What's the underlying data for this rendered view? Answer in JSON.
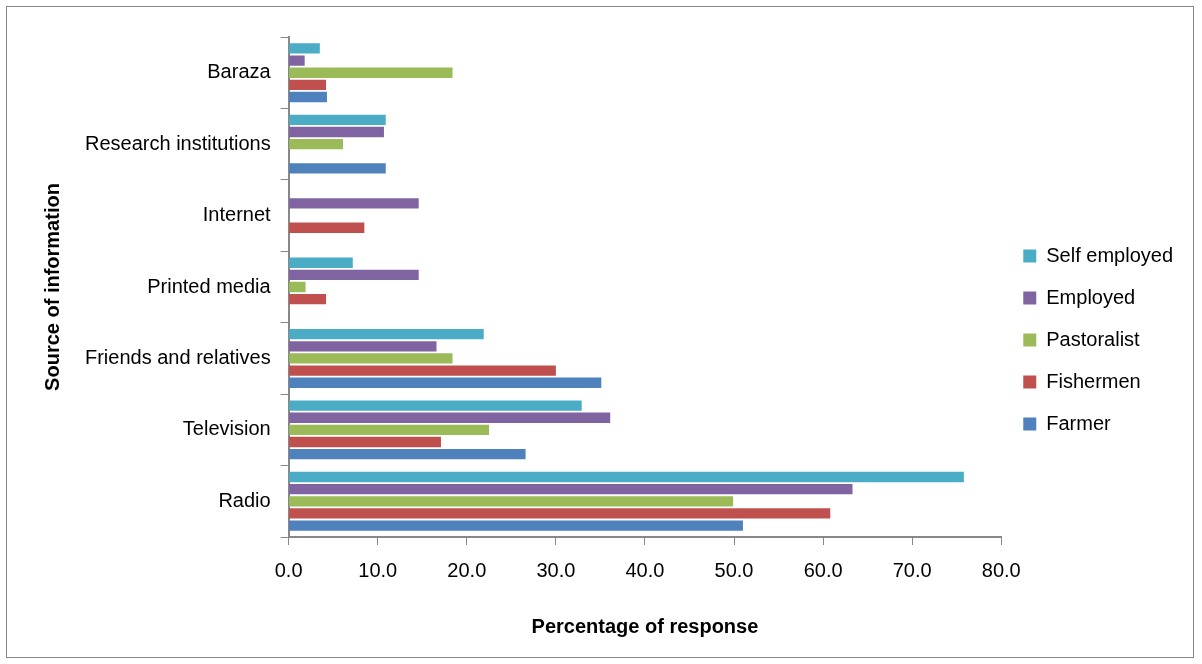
{
  "chart_data": {
    "type": "bar",
    "orientation": "horizontal",
    "xlabel": "Percentage of response",
    "ylabel": "Source of information",
    "categories": [
      "Baraza",
      "Research institutions",
      "Internet",
      "Printed media",
      "Friends and relatives",
      "Television",
      "Radio"
    ],
    "series": [
      {
        "name": "Self employed",
        "color": "#4bacc6",
        "values": [
          3.5,
          10.9,
          null,
          7.2,
          21.9,
          32.9,
          75.8
        ]
      },
      {
        "name": "Employed",
        "color": "#8064a2",
        "values": [
          1.8,
          10.7,
          14.6,
          14.6,
          16.6,
          36.1,
          63.3
        ]
      },
      {
        "name": "Pastoralist",
        "color": "#9bbb59",
        "values": [
          18.4,
          6.1,
          null,
          1.9,
          18.4,
          22.5,
          49.9
        ]
      },
      {
        "name": "Fishermen",
        "color": "#c0504d",
        "values": [
          4.2,
          null,
          8.5,
          4.2,
          30.0,
          17.1,
          60.8
        ]
      },
      {
        "name": "Farmer",
        "color": "#4f81bd",
        "values": [
          4.3,
          10.9,
          null,
          null,
          35.1,
          26.6,
          51.0
        ]
      }
    ],
    "xlim": [
      0,
      80
    ],
    "xticks": [
      {
        "value": 0,
        "label": "0.0"
      },
      {
        "value": 10,
        "label": "10.0"
      },
      {
        "value": 20,
        "label": "20.0"
      },
      {
        "value": 30,
        "label": "30.0"
      },
      {
        "value": 40,
        "label": "40.0"
      },
      {
        "value": 50,
        "label": "50.0"
      },
      {
        "value": 60,
        "label": "60.0"
      },
      {
        "value": 70,
        "label": "70.0"
      },
      {
        "value": 80,
        "label": "80.0"
      }
    ],
    "grid": false,
    "legend": "right"
  }
}
